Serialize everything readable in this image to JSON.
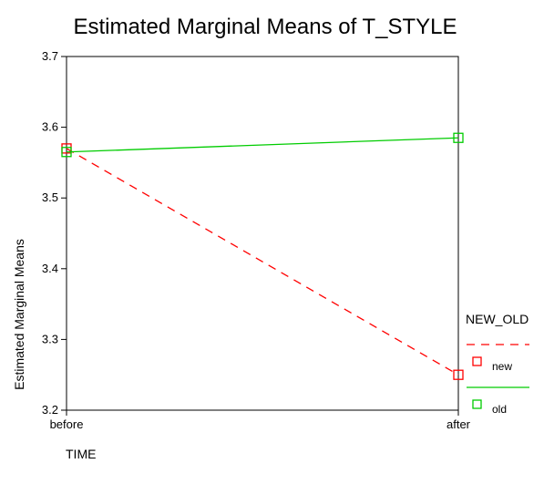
{
  "chart_data": {
    "type": "line",
    "title": "Estimated Marginal Means of T_STYLE",
    "xlabel": "TIME",
    "ylabel": "Estimated Marginal Means",
    "categories": [
      "before",
      "after"
    ],
    "ylim": [
      3.2,
      3.7
    ],
    "yticks": [
      "3.2",
      "3.3",
      "3.4",
      "3.5",
      "3.6",
      "3.7"
    ],
    "grid": false,
    "legend": {
      "title": "NEW_OLD",
      "placement": "right"
    },
    "series": [
      {
        "name": "new",
        "values": [
          3.57,
          3.25
        ],
        "color": "#ff0000",
        "line_style": "dashed",
        "marker": "square"
      },
      {
        "name": "old",
        "values": [
          3.565,
          3.585
        ],
        "color": "#00cc00",
        "line_style": "solid",
        "marker": "square"
      }
    ]
  }
}
